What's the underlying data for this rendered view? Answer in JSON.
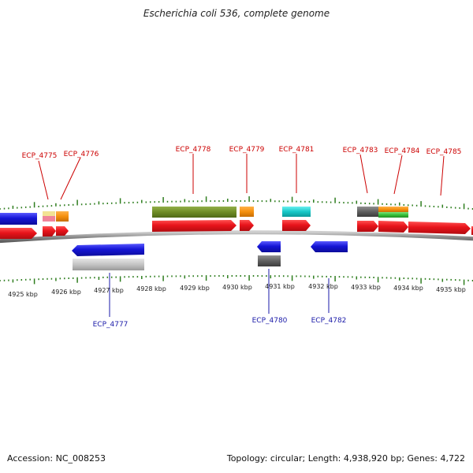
{
  "title": "Escherichia coli 536, complete genome",
  "footer": {
    "accession": "Accession: NC_008253",
    "summary": "Topology: circular; Length: 4,938,920 bp; Genes: 4,722"
  },
  "colors": {
    "forward_label": "#cc0000",
    "reverse_label": "#1a1aa8",
    "ticks": "#2e7d1e",
    "backbone": "#8f8f8f"
  },
  "scale_labels": [
    "4925 kbp",
    "4926 kbp",
    "4927 kbp",
    "4928 kbp",
    "4929 kbp",
    "4930 kbp",
    "4931 kbp",
    "4932 kbp",
    "4933 kbp",
    "4934 kbp",
    "4935 kbp"
  ],
  "gene_labels_top": [
    "ECP_4775",
    "ECP_4776",
    "ECP_4778",
    "ECP_4779",
    "ECP_4781",
    "ECP_4783",
    "ECP_4784",
    "ECP_4785"
  ],
  "gene_labels_bottom": [
    "ECP_4777",
    "ECP_4780",
    "ECP_4782"
  ],
  "feature_colors": {
    "cds": "#e8141b",
    "rev_cds": "#1616d8",
    "cog_blue": "#1515d6",
    "cog_green": "#6e8c25",
    "cog_orange": "#f5900e",
    "cog_cyan": "#17c8c8",
    "cog_gray": "#606060",
    "cog_lightgray": "#c4c4c4",
    "cog_lime": "#38c13a",
    "cog_pink": "#f0849a",
    "cog_yellow": "#f2e394"
  }
}
